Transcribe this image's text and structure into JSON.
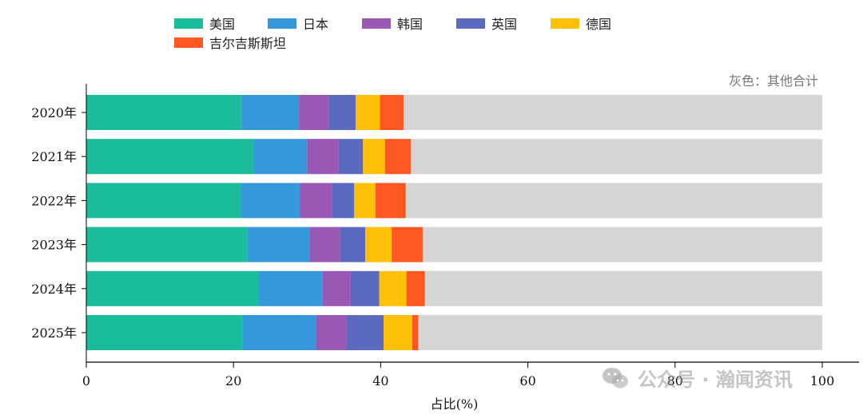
{
  "chart_data": {
    "type": "bar",
    "orientation": "horizontal",
    "stacked": true,
    "categories": [
      "2020年",
      "2021年",
      "2022年",
      "2023年",
      "2024年",
      "2025年"
    ],
    "series": [
      {
        "name": "美国",
        "color": "#1abc9c",
        "values": [
          21.1,
          22.8,
          21.0,
          21.9,
          23.4,
          21.2
        ]
      },
      {
        "name": "日本",
        "color": "#3498db",
        "values": [
          7.8,
          7.2,
          8.0,
          8.5,
          8.7,
          10.0
        ]
      },
      {
        "name": "韩国",
        "color": "#9b59b6",
        "values": [
          4.1,
          4.3,
          4.4,
          4.1,
          3.8,
          4.1
        ]
      },
      {
        "name": "英国",
        "color": "#5b69bf",
        "values": [
          3.6,
          3.3,
          3.0,
          3.4,
          3.9,
          5.1
        ]
      },
      {
        "name": "德国",
        "color": "#ffc107",
        "values": [
          3.3,
          3.0,
          2.9,
          3.6,
          3.7,
          3.9
        ]
      },
      {
        "name": "吉尔吉斯斯坦",
        "color": "#ff5722",
        "values": [
          3.2,
          3.5,
          4.1,
          4.2,
          2.5,
          0.8
        ]
      }
    ],
    "others": {
      "color": "#d5d5d3"
    },
    "xlabel": "占比(%)",
    "ylabel": "",
    "xlim": [
      0,
      100
    ],
    "xticks": [
      0,
      20,
      40,
      60,
      80,
      100
    ],
    "legend_position": "top",
    "note": "灰色：其他合计"
  },
  "watermark": {
    "text": "公众号 · 瀚闻资讯"
  }
}
